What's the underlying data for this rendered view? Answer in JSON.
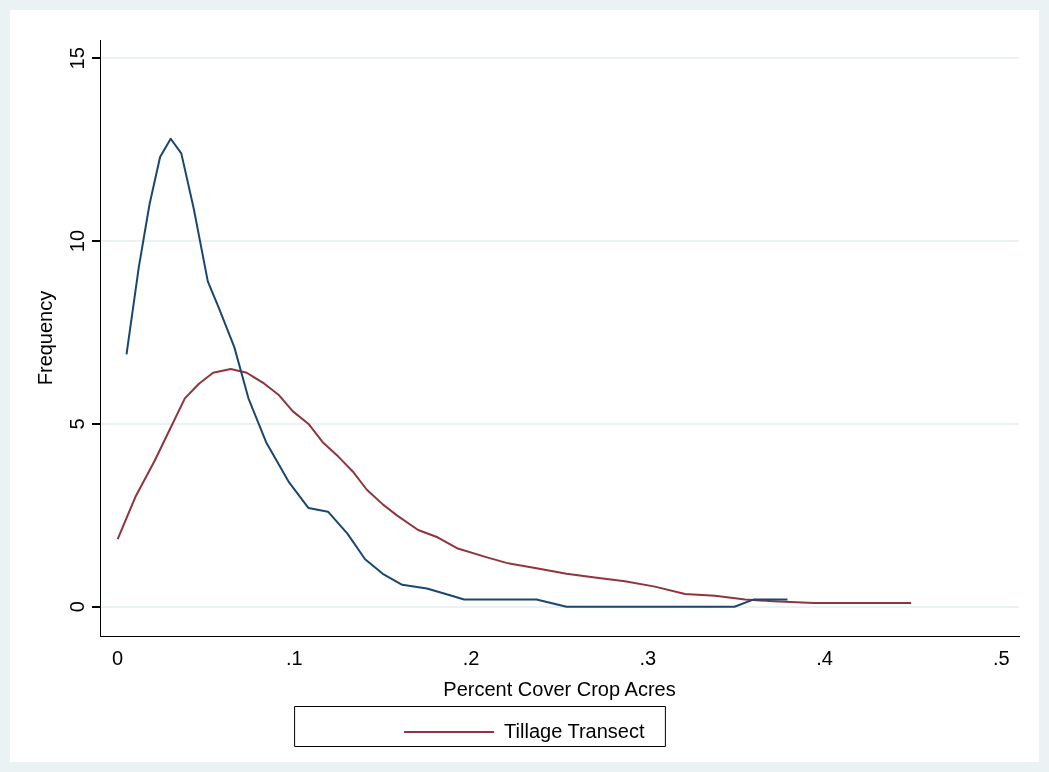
{
  "chart_data": {
    "type": "line",
    "xlabel": "Percent Cover Crop Acres",
    "ylabel": "Frequency",
    "xlim": [
      -0.01,
      0.51
    ],
    "xticks": [
      {
        "value": 0,
        "label": "0"
      },
      {
        "value": 0.1,
        "label": ".1"
      },
      {
        "value": 0.2,
        "label": ".2"
      },
      {
        "value": 0.3,
        "label": ".3"
      },
      {
        "value": 0.4,
        "label": ".4"
      },
      {
        "value": 0.5,
        "label": ".5"
      }
    ],
    "ylim": [
      -0.8,
      15.5
    ],
    "yticks": [
      0,
      5,
      10,
      15
    ],
    "grid": "y",
    "legend": "bottom",
    "marker": "none",
    "line_style": "solid",
    "series": [
      {
        "color": "#1a476f",
        "x": [
          0.005,
          0.012,
          0.018,
          0.024,
          0.03,
          0.036,
          0.043,
          0.051,
          0.057,
          0.066,
          0.074,
          0.084,
          0.097,
          0.108,
          0.119,
          0.13,
          0.14,
          0.15,
          0.161,
          0.175,
          0.189,
          0.196,
          0.209,
          0.22,
          0.237,
          0.254,
          0.349,
          0.36,
          0.379
        ],
        "values": [
          6.9,
          9.3,
          11.0,
          12.3,
          12.8,
          12.4,
          10.9,
          8.9,
          8.2,
          7.1,
          5.7,
          4.5,
          3.4,
          2.7,
          2.6,
          2.0,
          1.3,
          0.9,
          0.6,
          0.5,
          0.3,
          0.2,
          0.2,
          0.2,
          0.2,
          0,
          0,
          0.2,
          0.2
        ]
      },
      {
        "name": "Tillage Transect",
        "color": "#90353b",
        "x": [
          0,
          0.01,
          0.021,
          0.029,
          0.038,
          0.046,
          0.054,
          0.064,
          0.073,
          0.083,
          0.091,
          0.099,
          0.108,
          0.116,
          0.125,
          0.133,
          0.141,
          0.15,
          0.158,
          0.17,
          0.181,
          0.192,
          0.209,
          0.22,
          0.237,
          0.254,
          0.27,
          0.287,
          0.304,
          0.321,
          0.338,
          0.355,
          0.371,
          0.394,
          0.422,
          0.449
        ],
        "values": [
          1.85,
          3.0,
          4.0,
          4.8,
          5.7,
          6.1,
          6.4,
          6.5,
          6.4,
          6.1,
          5.8,
          5.35,
          5.0,
          4.5,
          4.1,
          3.7,
          3.2,
          2.8,
          2.5,
          2.1,
          1.9,
          1.6,
          1.35,
          1.2,
          1.05,
          0.9,
          0.8,
          0.7,
          0.55,
          0.35,
          0.3,
          0.2,
          0.15,
          0.1,
          0.1,
          0.1
        ]
      }
    ]
  }
}
